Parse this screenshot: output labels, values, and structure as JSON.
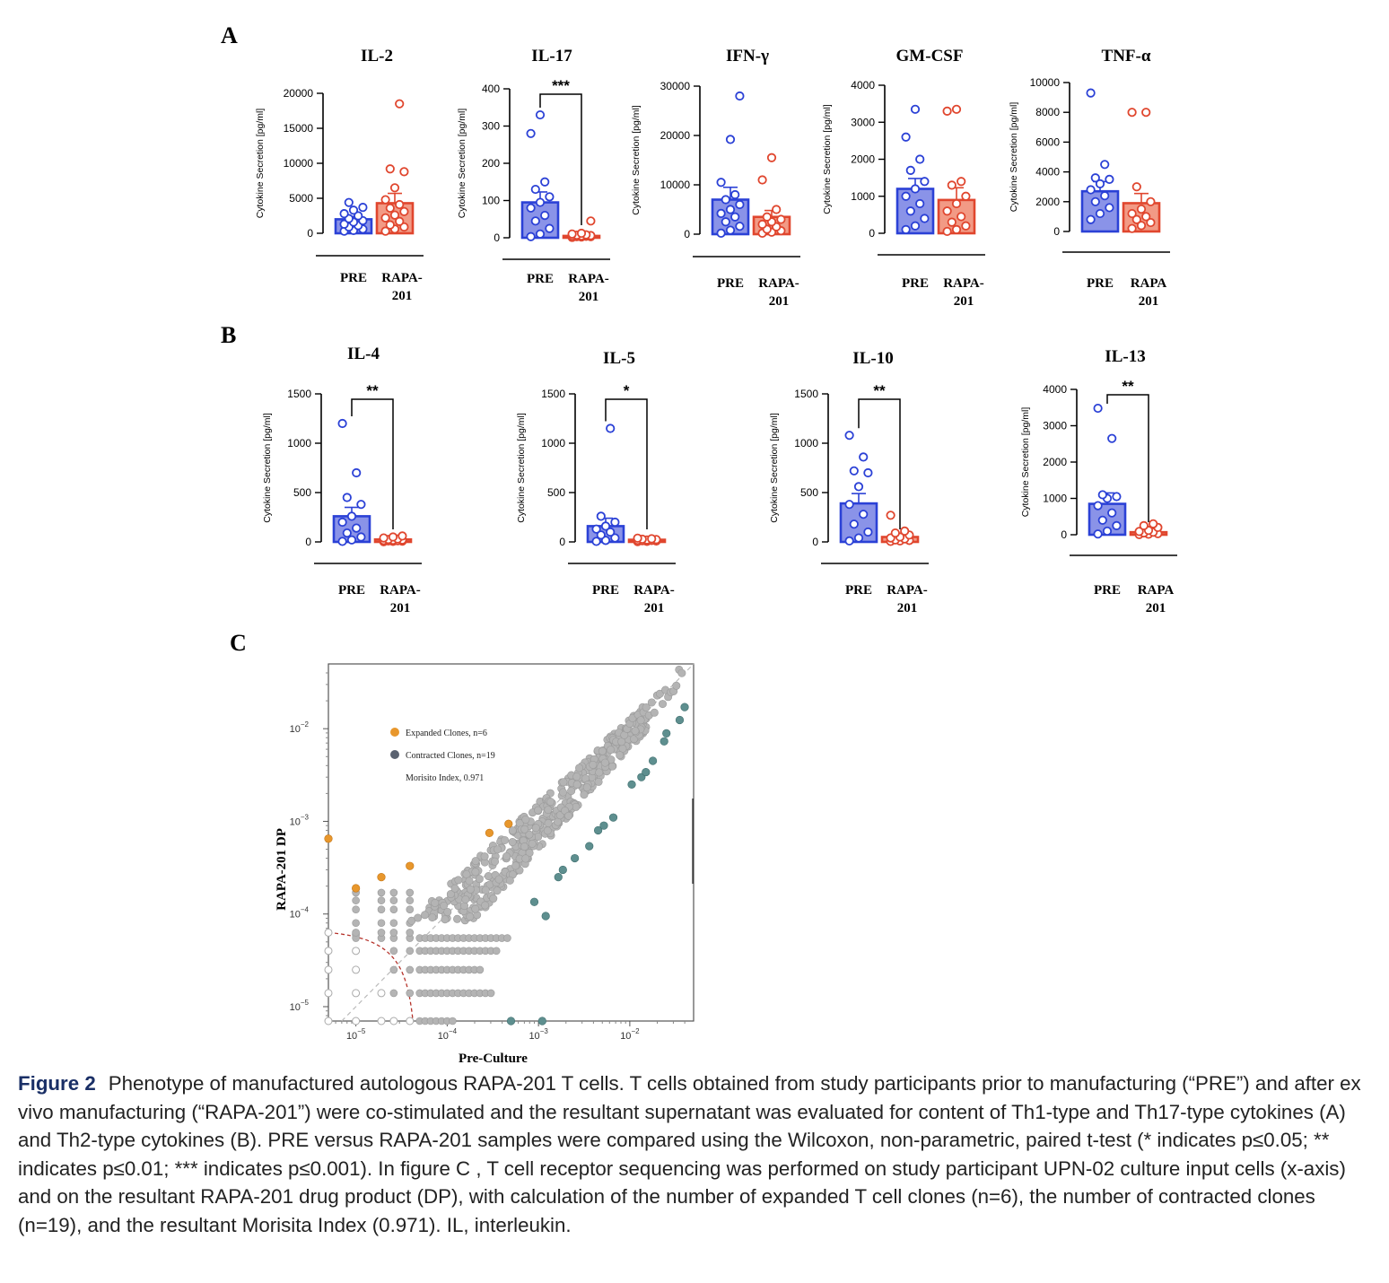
{
  "panels": {
    "A": "A",
    "B": "B",
    "C": "C"
  },
  "colors": {
    "pre": "#2b41d6",
    "pre_fill": "#8a93e8",
    "rapa": "#e0462e",
    "rapa_fill": "#f29a85",
    "gray": "#b4b4b4",
    "expanded": "#e8972c",
    "contracted": "#5e8f8f"
  },
  "chart_data": [
    {
      "type": "bar",
      "title": "IL-2",
      "ylabel": "Cytokine Secretion [pg/ml]",
      "categories": [
        "PRE",
        "RAPA-\n201"
      ],
      "ylim": [
        0,
        20000
      ],
      "yticks": [
        0,
        5000,
        10000,
        15000,
        20000
      ],
      "means": [
        2000,
        4300
      ],
      "sem": [
        400,
        1400
      ],
      "points": [
        [
          300,
          400,
          600,
          900,
          1100,
          1300,
          1600,
          1800,
          2100,
          2500,
          2800,
          3300,
          3700,
          4400
        ],
        [
          300,
          600,
          900,
          1200,
          1700,
          2200,
          2600,
          3100,
          3600,
          4100,
          4800,
          6500,
          8800,
          9200,
          18500
        ]
      ],
      "significance": ""
    },
    {
      "type": "bar",
      "title": "IL-17",
      "ylabel": "Cytokine Secretion [pg/ml]",
      "categories": [
        "PRE",
        "RAPA-\n201"
      ],
      "ylim": [
        0,
        400
      ],
      "yticks": [
        0,
        100,
        200,
        300,
        400
      ],
      "means": [
        95,
        5
      ],
      "sem": [
        28,
        3
      ],
      "points": [
        [
          3,
          10,
          25,
          45,
          60,
          80,
          95,
          110,
          130,
          150,
          280,
          330
        ],
        [
          1,
          2,
          3,
          3,
          4,
          5,
          5,
          6,
          7,
          8,
          10,
          12,
          45
        ]
      ],
      "significance": "***"
    },
    {
      "type": "bar",
      "title": "IFN-γ",
      "ylabel": "Cytokine Secretion [pg/ml]",
      "categories": [
        "PRE",
        "RAPA-\n201"
      ],
      "ylim": [
        0,
        30000
      ],
      "yticks": [
        0,
        10000,
        20000,
        30000
      ],
      "means": [
        7000,
        3500
      ],
      "sem": [
        2500,
        1300
      ],
      "points": [
        [
          200,
          800,
          1600,
          2500,
          3500,
          4200,
          5000,
          6000,
          7000,
          8000,
          10500,
          19200,
          28000
        ],
        [
          200,
          400,
          700,
          1000,
          1500,
          2000,
          2500,
          3000,
          3500,
          5000,
          11000,
          15500
        ]
      ],
      "significance": ""
    },
    {
      "type": "bar",
      "title": "GM-CSF",
      "ylabel": "Cytokine Secretion [pg/ml]",
      "categories": [
        "PRE",
        "RAPA-\n201"
      ],
      "ylim": [
        0,
        4000
      ],
      "yticks": [
        0,
        1000,
        2000,
        3000,
        4000
      ],
      "means": [
        1200,
        900
      ],
      "sem": [
        280,
        330
      ],
      "points": [
        [
          100,
          200,
          400,
          600,
          800,
          1000,
          1200,
          1400,
          1700,
          2000,
          2600,
          3350
        ],
        [
          50,
          100,
          200,
          300,
          450,
          600,
          800,
          1000,
          1300,
          1400,
          3300,
          3350
        ]
      ],
      "significance": ""
    },
    {
      "type": "bar",
      "title": "TNF-α",
      "ylabel": "Cytokine Secretion [pg/ml]",
      "categories": [
        "PRE",
        "RAPA\n201"
      ],
      "ylim": [
        0,
        10000
      ],
      "yticks": [
        0,
        2000,
        4000,
        6000,
        8000,
        10000
      ],
      "means": [
        2700,
        1900
      ],
      "sem": [
        650,
        650
      ],
      "points": [
        [
          800,
          1200,
          1600,
          2000,
          2400,
          2800,
          3200,
          3500,
          3600,
          4500,
          9300
        ],
        [
          200,
          400,
          600,
          800,
          1000,
          1200,
          1500,
          2000,
          3000,
          8000,
          8000
        ]
      ],
      "significance": ""
    },
    {
      "type": "bar",
      "title": "IL-4",
      "ylabel": "Cytokine Secretion [pg/ml]",
      "categories": [
        "PRE",
        "RAPA-\n201"
      ],
      "ylim": [
        0,
        1500
      ],
      "yticks": [
        0,
        500,
        1000,
        1500
      ],
      "means": [
        260,
        25
      ],
      "sem": [
        90,
        6
      ],
      "points": [
        [
          5,
          20,
          50,
          90,
          140,
          200,
          260,
          380,
          450,
          700,
          1200
        ],
        [
          2,
          5,
          8,
          10,
          12,
          15,
          18,
          20,
          25,
          30,
          40,
          50,
          60
        ]
      ],
      "significance": "**"
    },
    {
      "type": "bar",
      "title": "IL-5",
      "ylabel": "Cytokine Secretion [pg/ml]",
      "categories": [
        "PRE",
        "RAPA-\n201"
      ],
      "ylim": [
        0,
        1500
      ],
      "yticks": [
        0,
        500,
        1000,
        1500
      ],
      "means": [
        160,
        22
      ],
      "sem": [
        80,
        5
      ],
      "points": [
        [
          5,
          15,
          40,
          70,
          100,
          130,
          160,
          200,
          260,
          1150
        ],
        [
          3,
          6,
          9,
          12,
          15,
          18,
          20,
          24,
          28,
          32,
          38
        ]
      ],
      "significance": "*"
    },
    {
      "type": "bar",
      "title": "IL-10",
      "ylabel": "Cytokine Secretion [pg/ml]",
      "categories": [
        "PRE",
        "RAPA-\n201"
      ],
      "ylim": [
        0,
        1500
      ],
      "yticks": [
        0,
        500,
        1000,
        1500
      ],
      "means": [
        390,
        50
      ],
      "sem": [
        100,
        20
      ],
      "points": [
        [
          10,
          40,
          100,
          180,
          280,
          380,
          560,
          700,
          720,
          860,
          1080
        ],
        [
          5,
          10,
          15,
          20,
          30,
          40,
          50,
          70,
          90,
          110,
          270
        ]
      ],
      "significance": "**"
    },
    {
      "type": "bar",
      "title": "IL-13",
      "ylabel": "Cytokine Secretion [pg/ml]",
      "categories": [
        "PRE",
        "RAPA\n201"
      ],
      "ylim": [
        0,
        4000
      ],
      "yticks": [
        0,
        1000,
        2000,
        3000,
        4000
      ],
      "means": [
        850,
        70
      ],
      "sem": [
        300,
        30
      ],
      "points": [
        [
          20,
          100,
          250,
          400,
          600,
          800,
          1000,
          1050,
          1100,
          2650,
          3480
        ],
        [
          5,
          15,
          30,
          50,
          70,
          90,
          120,
          200,
          250,
          300
        ]
      ],
      "significance": "**"
    },
    {
      "type": "scatter",
      "xlabel": "Pre-Culture",
      "ylabel": "RAPA-201 DP",
      "xscale": "log",
      "yscale": "log",
      "xlim": [
        5e-06,
        0.05
      ],
      "ylim": [
        7e-06,
        0.05
      ],
      "xticks": [
        1e-05,
        0.0001,
        0.001,
        0.01
      ],
      "yticks": [
        1e-05,
        0.0001,
        0.001,
        0.01
      ],
      "legend": [
        {
          "label": "Expanded Clones, n=6",
          "color": "#e8972c"
        },
        {
          "label": "Contracted Clones, n=19",
          "color": "#5e8f8f"
        }
      ],
      "annotation": "Morisito Index, 0.971",
      "expanded": [
        [
          5e-06,
          0.00065
        ],
        [
          1e-05,
          0.00019
        ],
        [
          1.9e-05,
          0.00025
        ],
        [
          3.9e-05,
          0.00033
        ],
        [
          0.00029,
          0.00075
        ],
        [
          0.00047,
          0.00094
        ]
      ],
      "contracted": [
        [
          0.0005,
          7e-06
        ],
        [
          0.0011,
          7e-06
        ],
        [
          0.0012,
          9.5e-05
        ],
        [
          0.0009,
          0.000135
        ],
        [
          0.00165,
          0.00025
        ],
        [
          0.00185,
          0.0003
        ],
        [
          0.0025,
          0.0004
        ],
        [
          0.0036,
          0.00054
        ],
        [
          0.0045,
          0.0008
        ],
        [
          0.0052,
          0.0009
        ],
        [
          0.0066,
          0.0011
        ],
        [
          0.0105,
          0.0025
        ],
        [
          0.0134,
          0.003
        ],
        [
          0.015,
          0.0034
        ],
        [
          0.0179,
          0.0045
        ],
        [
          0.0238,
          0.0073
        ],
        [
          0.0252,
          0.0089
        ],
        [
          0.0352,
          0.0124
        ],
        [
          0.0399,
          0.0171
        ]
      ]
    }
  ],
  "caption": {
    "label": "Figure 2",
    "text": "Phenotype of manufactured autologous RAPA-201 T cells. T cells obtained from study participants prior to manufacturing (“PRE”) and after ex vivo manufacturing (“RAPA-201”) were co-stimulated and the resultant supernatant was evaluated for content of Th1-type and Th17-type cytokines (A) and Th2-type cytokines (B). PRE versus RAPA-201 samples were compared using the Wilcoxon, non-parametric, paired t-test (* indicates p≤0.05; ** indicates p≤0.01; *** indicates p≤0.001). In figure C , T cell receptor sequencing was performed on study participant UPN-02 culture input cells (x-axis) and on the resultant RAPA-201 drug product (DP), with calculation of the number of expanded T cell clones (n=6), the number of contracted clones (n=19), and the resultant Morisita Index (0.971). IL, interleukin."
  }
}
